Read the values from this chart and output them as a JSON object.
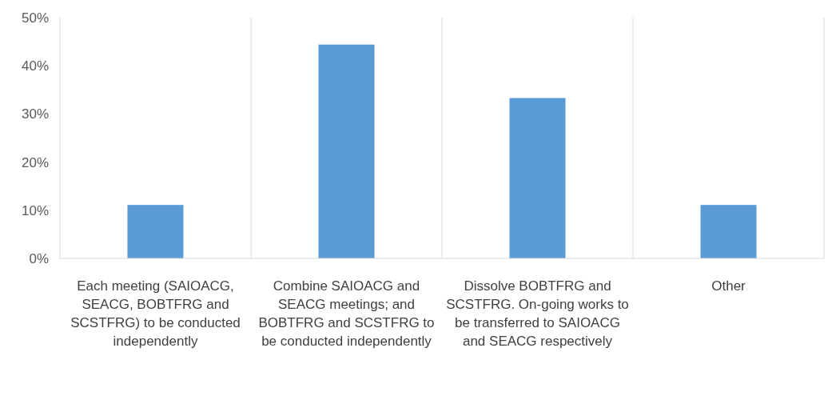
{
  "chart_data": {
    "type": "bar",
    "categories": [
      "Each meeting (SAIOACG, SEACG, BOBTFRG and SCSTFRG) to be conducted independently",
      "Combine SAIOACG and SEACG meetings; and BOBTFRG and SCSTFRG to be conducted independently",
      "Dissolve BOBTFRG and SCSTFRG. On-going works to be transferred to SAIOACG and SEACG respectively",
      "Other"
    ],
    "values": [
      11.1,
      44.4,
      33.3,
      11.1
    ],
    "color": "#5b9bd5",
    "ylim": [
      0,
      50
    ],
    "yticks": [
      {
        "value": 0,
        "label": "0%"
      },
      {
        "value": 10,
        "label": "10%"
      },
      {
        "value": 20,
        "label": "20%"
      },
      {
        "value": 30,
        "label": "30%"
      },
      {
        "value": 40,
        "label": "40%"
      },
      {
        "value": 50,
        "label": "50%"
      }
    ],
    "grid": "x"
  }
}
